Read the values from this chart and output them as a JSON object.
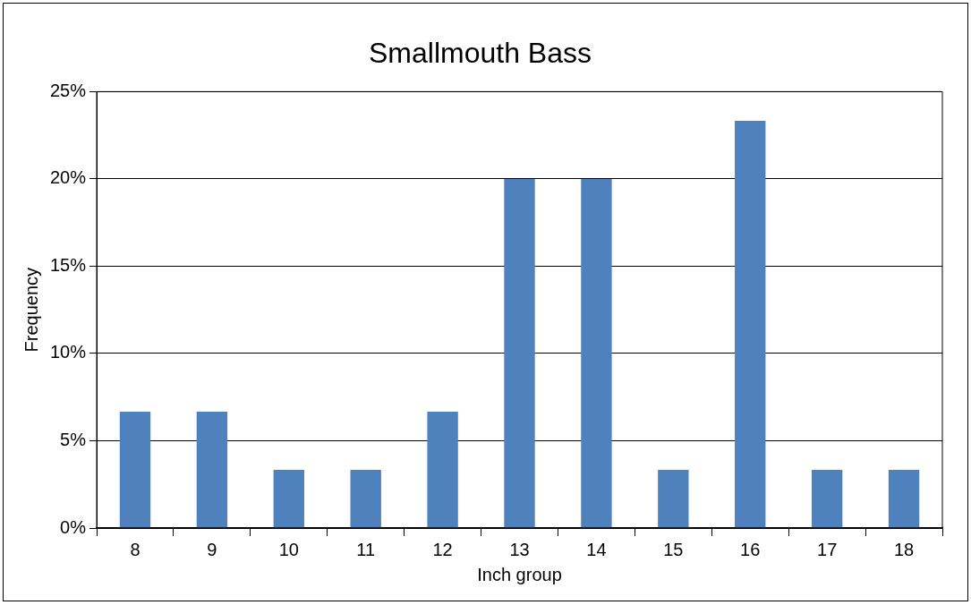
{
  "chart_data": {
    "type": "bar",
    "title": "Smallmouth Bass",
    "xlabel": "Inch group",
    "ylabel": "Frequency",
    "categories": [
      "8",
      "9",
      "10",
      "11",
      "12",
      "13",
      "14",
      "15",
      "16",
      "17",
      "18"
    ],
    "values": [
      6.67,
      6.67,
      3.33,
      3.33,
      6.67,
      20,
      20,
      3.33,
      23.33,
      3.33,
      3.33
    ],
    "color": "#4f81bd",
    "ylim": [
      0,
      25
    ],
    "yticks": [
      {
        "value": 0,
        "label": "0%"
      },
      {
        "value": 5,
        "label": "5%"
      },
      {
        "value": 10,
        "label": "10%"
      },
      {
        "value": 15,
        "label": "15%"
      },
      {
        "value": 20,
        "label": "20%"
      },
      {
        "value": 25,
        "label": "25%"
      }
    ],
    "grid": "y",
    "legend": false
  }
}
